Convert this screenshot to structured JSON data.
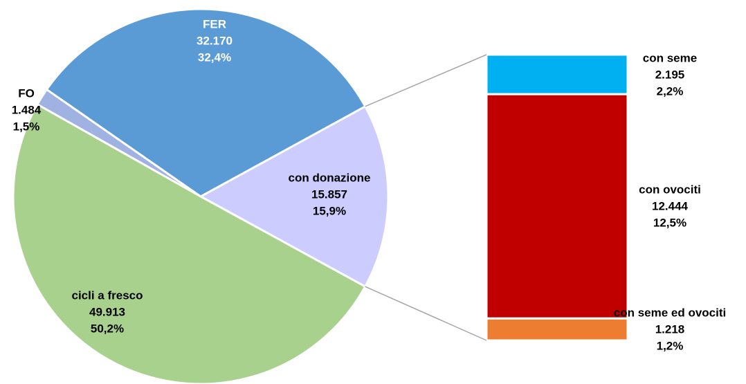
{
  "chart_data": {
    "type": "bar-of-pie",
    "pie": {
      "categories": [
        "con donazione",
        "cicli a fresco",
        "FO",
        "FER"
      ],
      "values": [
        15857,
        49913,
        1484,
        32170
      ],
      "value_labels": [
        "15.857",
        "49.913",
        "1.484",
        "32.170"
      ],
      "percent_labels": [
        "15,9%",
        "50,2%",
        "1,5%",
        "32,4%"
      ],
      "colors": [
        "#ccccff",
        "#a9d18e",
        "#9fb2e2",
        "#5b9bd5"
      ]
    },
    "bar": {
      "categories": [
        "con seme",
        "con ovociti",
        "con seme ed ovociti"
      ],
      "values": [
        2195,
        12444,
        1218
      ],
      "value_labels": [
        "2.195",
        "12.444",
        "1.218"
      ],
      "percent_labels": [
        "2,2%",
        "12,5%",
        "1,2%"
      ],
      "colors": [
        "#00b0f0",
        "#c00000",
        "#ed7d31"
      ]
    }
  }
}
